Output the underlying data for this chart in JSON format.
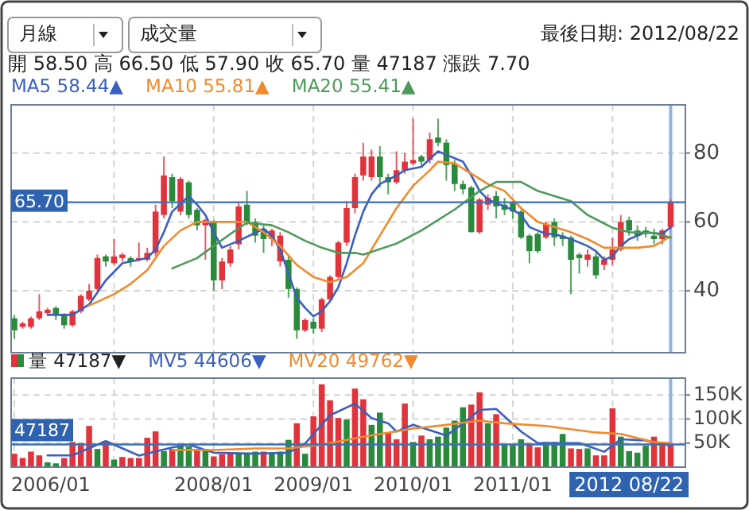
{
  "chart_data": [
    {
      "type": "candlestick",
      "annotations": [
        "月線",
        "成交量",
        "最後日期: 2012/08/22",
        "開 58.50 高 66.50 低 57.90 收 65.70 量 47187 漲跌 7.70"
      ],
      "x": [
        "2006-01",
        "2006-02",
        "2006-03",
        "2006-04",
        "2006-05",
        "2006-06",
        "2006-07",
        "2006-08",
        "2006-09",
        "2006-10",
        "2006-11",
        "2006-12",
        "2007-01",
        "2007-02",
        "2007-03",
        "2007-04",
        "2007-05",
        "2007-06",
        "2007-07",
        "2007-08",
        "2007-09",
        "2007-10",
        "2007-11",
        "2007-12",
        "2008-01",
        "2008-02",
        "2008-03",
        "2008-04",
        "2008-05",
        "2008-06",
        "2008-07",
        "2008-08",
        "2008-09",
        "2008-10",
        "2008-11",
        "2008-12",
        "2009-01",
        "2009-02",
        "2009-03",
        "2009-04",
        "2009-05",
        "2009-06",
        "2009-07",
        "2009-08",
        "2009-09",
        "2009-10",
        "2009-11",
        "2009-12",
        "2010-01",
        "2010-02",
        "2010-03",
        "2010-04",
        "2010-05",
        "2010-06",
        "2010-07",
        "2010-08",
        "2010-09",
        "2010-10",
        "2010-11",
        "2010-12",
        "2011-01",
        "2011-02",
        "2011-03",
        "2011-04",
        "2011-05",
        "2011-06",
        "2011-07",
        "2011-08",
        "2011-09",
        "2011-10",
        "2011-11",
        "2011-12",
        "2012-01",
        "2012-02",
        "2012-03",
        "2012-04",
        "2012-05",
        "2012-06",
        "2012-07",
        "2012-08"
      ],
      "ohlc": [
        [
          32,
          33,
          26,
          28.5
        ],
        [
          29.5,
          31,
          29,
          30.5
        ],
        [
          29.5,
          32.5,
          29,
          32
        ],
        [
          32,
          39,
          31.5,
          34
        ],
        [
          33.5,
          35,
          33,
          34.5
        ],
        [
          35,
          35.5,
          31.5,
          33
        ],
        [
          33,
          33.5,
          29,
          30
        ],
        [
          30,
          34.5,
          29.5,
          34
        ],
        [
          34,
          39,
          33.5,
          38.5
        ],
        [
          37.5,
          42,
          37,
          40
        ],
        [
          40.5,
          50.5,
          40,
          49.5
        ],
        [
          50,
          50.5,
          47,
          48.5
        ],
        [
          48,
          55,
          47.5,
          50
        ],
        [
          49.5,
          51,
          48.5,
          50.5
        ],
        [
          49.5,
          50,
          47,
          48.5
        ],
        [
          49,
          54,
          48.5,
          49.5
        ],
        [
          49,
          52.5,
          48.5,
          51
        ],
        [
          51,
          65,
          50,
          63
        ],
        [
          62,
          79,
          61,
          73.5
        ],
        [
          73,
          74,
          64,
          66
        ],
        [
          63,
          73,
          62,
          72.5
        ],
        [
          71.5,
          72,
          61,
          62
        ],
        [
          63.5,
          64,
          57.5,
          59
        ],
        [
          59,
          61,
          49,
          60.5
        ],
        [
          60,
          60.5,
          40,
          43
        ],
        [
          43,
          49.5,
          40.5,
          48.5
        ],
        [
          48,
          53,
          47,
          52
        ],
        [
          53.5,
          65.5,
          52,
          64.5
        ],
        [
          65,
          69,
          59,
          60
        ],
        [
          60,
          61,
          54,
          56
        ],
        [
          58,
          59,
          51,
          55
        ],
        [
          55,
          58,
          53,
          57.5
        ],
        [
          48.5,
          57,
          47,
          56
        ],
        [
          49,
          50,
          38,
          40.5
        ],
        [
          40.5,
          41,
          26,
          28.5
        ],
        [
          28.5,
          32,
          28,
          31.5
        ],
        [
          31,
          32,
          27.5,
          29
        ],
        [
          29,
          38,
          28,
          37.5
        ],
        [
          37.5,
          44.5,
          37,
          44
        ],
        [
          44,
          54.5,
          43.5,
          54
        ],
        [
          54,
          66,
          53,
          64
        ],
        [
          64,
          74,
          62.5,
          73
        ],
        [
          73.5,
          83,
          72,
          79
        ],
        [
          73,
          81,
          72,
          79
        ],
        [
          79,
          82,
          70,
          73
        ],
        [
          73,
          74,
          68,
          71.5
        ],
        [
          71.5,
          80.5,
          71,
          75
        ],
        [
          75,
          80,
          74,
          77.5
        ],
        [
          77,
          90,
          76.5,
          78
        ],
        [
          79,
          79.5,
          76,
          77.5
        ],
        [
          78,
          86,
          77,
          84
        ],
        [
          84.5,
          90,
          82,
          83
        ],
        [
          83,
          84,
          72,
          76.5
        ],
        [
          77,
          78,
          69,
          71
        ],
        [
          71,
          72,
          68,
          69.5
        ],
        [
          70,
          70.5,
          57,
          57
        ],
        [
          57,
          67,
          56.5,
          66.5
        ],
        [
          65,
          68,
          63.5,
          67
        ],
        [
          67.5,
          69,
          61,
          64.5
        ],
        [
          65,
          67,
          62,
          63.5
        ],
        [
          65.5,
          66,
          61,
          63
        ],
        [
          63,
          63.5,
          55,
          55.5
        ],
        [
          56,
          56.5,
          48,
          51.5
        ],
        [
          56.5,
          57,
          51,
          51.5
        ],
        [
          55.5,
          60,
          55,
          59.5
        ],
        [
          60,
          61,
          53,
          55.5
        ],
        [
          56,
          57,
          53,
          55
        ],
        [
          55.5,
          56,
          39,
          49
        ],
        [
          50.5,
          51,
          45,
          49.5
        ],
        [
          49,
          52,
          47,
          50.5
        ],
        [
          50,
          51,
          43.5,
          44.5
        ],
        [
          47.5,
          50,
          46,
          49
        ],
        [
          49,
          55.5,
          47.5,
          52
        ],
        [
          52,
          62,
          51.5,
          60
        ],
        [
          60.5,
          61.5,
          56,
          57.5
        ],
        [
          57.5,
          59,
          54.5,
          56
        ],
        [
          57.5,
          58.5,
          55.5,
          56.5
        ],
        [
          56,
          58,
          53.5,
          55
        ],
        [
          55,
          58,
          53.5,
          57.5
        ],
        [
          58.5,
          66.5,
          57.9,
          65.7
        ]
      ],
      "colors": [
        "#2a8a3b",
        "#e0333c",
        "#e0333c",
        "#e0333c",
        "#e0333c",
        "#2a8a3b",
        "#2a8a3b",
        "#e0333c",
        "#e0333c",
        "#e0333c",
        "#e0333c",
        "#2a8a3b",
        "#e0333c",
        "#e0333c",
        "#2a8a3b",
        "#e0333c",
        "#e0333c",
        "#e0333c",
        "#e0333c",
        "#2a8a3b",
        "#e0333c",
        "#2a8a3b",
        "#2a8a3b",
        "#e0333c",
        "#2a8a3b",
        "#e0333c",
        "#e0333c",
        "#e0333c",
        "#2a8a3b",
        "#2a8a3b",
        "#2a8a3b",
        "#e0333c",
        "#e0333c",
        "#2a8a3b",
        "#2a8a3b",
        "#e0333c",
        "#2a8a3b",
        "#e0333c",
        "#e0333c",
        "#e0333c",
        "#e0333c",
        "#e0333c",
        "#e0333c",
        "#e0333c",
        "#2a8a3b",
        "#2a8a3b",
        "#e0333c",
        "#e0333c",
        "#e0333c",
        "#2a8a3b",
        "#e0333c",
        "#2a8a3b",
        "#2a8a3b",
        "#2a8a3b",
        "#2a8a3b",
        "#2a8a3b",
        "#e0333c",
        "#e0333c",
        "#2a8a3b",
        "#2a8a3b",
        "#2a8a3b",
        "#2a8a3b",
        "#2a8a3b",
        "#2a8a3b",
        "#e0333c",
        "#2a8a3b",
        "#2a8a3b",
        "#2a8a3b",
        "#2a8a3b",
        "#e0333c",
        "#2a8a3b",
        "#e0333c",
        "#e0333c",
        "#e0333c",
        "#2a8a3b",
        "#2a8a3b",
        "#2a8a3b",
        "#2a8a3b",
        "#e0333c",
        "#e0333c"
      ],
      "series": [
        {
          "type": "line",
          "name": "MA5 58.44▲",
          "color": "#3a5fc0",
          "x": [
            "2006-05",
            "2006-08",
            "2006-10",
            "2006-12",
            "2007-02",
            "2007-04",
            "2007-05",
            "2007-06",
            "2007-07",
            "2007-08",
            "2007-10",
            "2007-11",
            "2007-12",
            "2008-01",
            "2008-02",
            "2008-04",
            "2008-07",
            "2008-08",
            "2008-09",
            "2008-10",
            "2008-11",
            "2008-12",
            "2009-01",
            "2009-02",
            "2009-03",
            "2009-04",
            "2009-05",
            "2009-06",
            "2009-07",
            "2009-08",
            "2009-09",
            "2009-11",
            "2009-12",
            "2010-02",
            "2010-04",
            "2010-05",
            "2010-07",
            "2010-08",
            "2010-09",
            "2010-10",
            "2010-12",
            "2011-01",
            "2011-02",
            "2011-03",
            "2011-05",
            "2011-06",
            "2011-08",
            "2011-10",
            "2011-11",
            "2011-12",
            "2012-01",
            "2012-02",
            "2012-03",
            "2012-05",
            "2012-07",
            "2012-08"
          ],
          "values": [
            33,
            33,
            36,
            43,
            48,
            49,
            49.5,
            52,
            57,
            63,
            67.5,
            65,
            62,
            57,
            52.5,
            54.5,
            58,
            56,
            52,
            45,
            38,
            35,
            32.6,
            34,
            37,
            41,
            48,
            56,
            63,
            68,
            71,
            73.5,
            75,
            76,
            80.5,
            79.5,
            77.5,
            73.5,
            69,
            66.5,
            64.5,
            63.5,
            62,
            58.5,
            56.5,
            56.5,
            55,
            53,
            51.5,
            49,
            50,
            53,
            55,
            57,
            56.5,
            58.44
          ]
        },
        {
          "type": "line",
          "name": "MA10 55.81▲",
          "color": "#f08a2c",
          "x": [
            "2006-10",
            "2007-01",
            "2007-03",
            "2007-05",
            "2007-07",
            "2007-09",
            "2007-11",
            "2008-03",
            "2008-05",
            "2008-07",
            "2008-09",
            "2008-11",
            "2009-01",
            "2009-03",
            "2009-05",
            "2009-07",
            "2009-09",
            "2009-11",
            "2010-01",
            "2010-03",
            "2010-04",
            "2010-06",
            "2010-08",
            "2010-10",
            "2010-12",
            "2011-02",
            "2011-04",
            "2011-06",
            "2011-08",
            "2011-10",
            "2011-12",
            "2012-02",
            "2012-04",
            "2012-06",
            "2012-08"
          ],
          "values": [
            35.7,
            39,
            42,
            46,
            53,
            57.5,
            60,
            60,
            60,
            57,
            53,
            47.5,
            44,
            42.5,
            44,
            48,
            56,
            64,
            70.5,
            75,
            77.5,
            77,
            74,
            71,
            69,
            64,
            60,
            58.5,
            57,
            55,
            52.5,
            52.5,
            52.5,
            53,
            55.81
          ]
        },
        {
          "type": "line",
          "name": "MA20 55.41▲",
          "color": "#4c9a5a",
          "x": [
            "2007-08",
            "2007-11",
            "2008-01",
            "2008-03",
            "2008-05",
            "2008-08",
            "2008-10",
            "2008-12",
            "2009-02",
            "2009-04",
            "2009-06",
            "2009-07",
            "2009-11",
            "2010-02",
            "2010-06",
            "2010-09",
            "2010-11",
            "2011-02",
            "2011-04",
            "2011-08",
            "2011-10",
            "2012-01",
            "2012-03",
            "2012-06",
            "2012-08"
          ],
          "values": [
            46.5,
            49.5,
            53,
            56.5,
            59.8,
            59,
            57,
            54.5,
            52.5,
            51,
            51,
            50.5,
            53.7,
            57.5,
            63.6,
            69,
            71.6,
            71.6,
            69,
            66,
            62,
            58.3,
            57,
            56.8,
            55.41
          ]
        }
      ],
      "xlim": [
        "2005-12-20",
        "2012-09-25"
      ],
      "xticks": [
        {
          "value": "2007-01",
          "label": null
        },
        {
          "value": "2008-01",
          "label": null
        },
        {
          "value": "2009-01",
          "label": null
        },
        {
          "value": "2010-01",
          "label": null
        },
        {
          "value": "2011-01",
          "label": null
        },
        {
          "value": "2012-01",
          "label": null
        }
      ],
      "ylim": [
        22,
        94
      ],
      "yticks": [
        40,
        60,
        80
      ],
      "tick_labels": "y",
      "grid": true,
      "legend": "top left",
      "ref_lines": [
        {
          "axis": "y",
          "value": 65.7,
          "label": "65.70",
          "color": "#3d6fb6"
        },
        {
          "axis": "x",
          "value": "2012-08",
          "color": "#8fb2e0"
        }
      ]
    },
    {
      "type": "bar",
      "x": [
        "2006-01",
        "2006-02",
        "2006-03",
        "2006-04",
        "2006-05",
        "2006-06",
        "2006-07",
        "2006-08",
        "2006-09",
        "2006-10",
        "2006-11",
        "2006-12",
        "2007-01",
        "2007-02",
        "2007-03",
        "2007-04",
        "2007-05",
        "2007-06",
        "2007-07",
        "2007-08",
        "2007-09",
        "2007-10",
        "2007-11",
        "2007-12",
        "2008-01",
        "2008-02",
        "2008-03",
        "2008-04",
        "2008-05",
        "2008-06",
        "2008-07",
        "2008-08",
        "2008-09",
        "2008-10",
        "2008-11",
        "2008-12",
        "2009-01",
        "2009-02",
        "2009-03",
        "2009-04",
        "2009-05",
        "2009-06",
        "2009-07",
        "2009-08",
        "2009-09",
        "2009-10",
        "2009-11",
        "2009-12",
        "2010-01",
        "2010-02",
        "2010-03",
        "2010-04",
        "2010-05",
        "2010-06",
        "2010-07",
        "2010-08",
        "2010-09",
        "2010-10",
        "2010-11",
        "2010-12",
        "2011-01",
        "2011-02",
        "2011-03",
        "2011-04",
        "2011-05",
        "2011-06",
        "2011-07",
        "2011-08",
        "2011-09",
        "2011-10",
        "2011-11",
        "2011-12",
        "2012-01",
        "2012-02",
        "2012-03",
        "2012-04",
        "2012-05",
        "2012-06",
        "2012-07",
        "2012-08"
      ],
      "series": [
        {
          "type": "bar",
          "name": "量 47187▼",
          "colors": [
            "#e0333c",
            "#e0333c",
            "#e0333c",
            "#e0333c",
            "#2a8a3b",
            "#2a8a3b",
            "#e0333c",
            "#e0333c",
            "#e0333c",
            "#e0333c",
            "#2a8a3b",
            "#e0333c",
            "#2a8a3b",
            "#e0333c",
            "#e0333c",
            "#e0333c",
            "#e0333c",
            "#e0333c",
            "#2a8a3b",
            "#e0333c",
            "#2a8a3b",
            "#2a8a3b",
            "#e0333c",
            "#2a8a3b",
            "#e0333c",
            "#e0333c",
            "#e0333c",
            "#2a8a3b",
            "#2a8a3b",
            "#2a8a3b",
            "#e0333c",
            "#2a8a3b",
            "#2a8a3b",
            "#2a8a3b",
            "#e0333c",
            "#2a8a3b",
            "#e0333c",
            "#e0333c",
            "#e0333c",
            "#e0333c",
            "#2a8a3b",
            "#e0333c",
            "#e0333c",
            "#2a8a3b",
            "#2a8a3b",
            "#e0333c",
            "#e0333c",
            "#e0333c",
            "#2a8a3b",
            "#e0333c",
            "#2a8a3b",
            "#2a8a3b",
            "#2a8a3b",
            "#2a8a3b",
            "#2a8a3b",
            "#e0333c",
            "#e0333c",
            "#2a8a3b",
            "#e0333c",
            "#2a8a3b",
            "#2a8a3b",
            "#2a8a3b",
            "#e0333c",
            "#e0333c",
            "#2a8a3b",
            "#2a8a3b",
            "#2a8a3b",
            "#e0333c",
            "#e0333c",
            "#2a8a3b",
            "#e0333c",
            "#e0333c",
            "#e0333c",
            "#2a8a3b",
            "#2a8a3b",
            "#2a8a3b",
            "#2a8a3b",
            "#e0333c",
            "#e0333c",
            "#e0333c"
          ],
          "values": [
            27800,
            18900,
            32200,
            24400,
            10000,
            7800,
            18900,
            52200,
            50000,
            85500,
            37800,
            54400,
            15600,
            21100,
            18900,
            18900,
            61100,
            74400,
            33300,
            37800,
            44400,
            43300,
            37800,
            37800,
            22200,
            26700,
            28900,
            30000,
            30000,
            32200,
            32200,
            30000,
            32200,
            56700,
            91100,
            27800,
            105500,
            172200,
            138900,
            102200,
            98900,
            163300,
            141100,
            87800,
            113300,
            71100,
            57800,
            132200,
            52200,
            65500,
            57800,
            63300,
            82200,
            96700,
            124400,
            130000,
            155500,
            91100,
            110000,
            46700,
            46700,
            57800,
            50000,
            41100,
            52200,
            52200,
            68900,
            38900,
            37800,
            38900,
            24400,
            24400,
            122200,
            63300,
            33300,
            30000,
            44400,
            63300,
            46700,
            47187
          ]
        },
        {
          "type": "line",
          "name": "MV5 44606▼",
          "color": "#3a5fc0",
          "x": [
            "2006-05",
            "2006-08",
            "2006-12",
            "2007-04",
            "2007-08",
            "2007-10",
            "2008-01",
            "2008-06",
            "2008-10",
            "2008-12",
            "2009-03",
            "2009-06",
            "2009-08",
            "2009-10",
            "2009-11",
            "2010-01",
            "2010-05",
            "2010-07",
            "2010-09",
            "2010-11",
            "2011-02",
            "2011-04",
            "2011-07",
            "2011-09",
            "2011-12",
            "2012-02",
            "2012-05",
            "2012-08"
          ],
          "values": [
            24400,
            24400,
            54000,
            24000,
            41000,
            46700,
            30000,
            27800,
            30000,
            48900,
            107800,
            132000,
            102000,
            91000,
            74000,
            88000,
            65500,
            91000,
            118900,
            121000,
            74000,
            50000,
            50000,
            50000,
            32000,
            57800,
            55500,
            44606
          ]
        },
        {
          "type": "line",
          "name": "MV20 49762▼",
          "color": "#f08a2c",
          "x": [
            "2007-08",
            "2008-01",
            "2008-06",
            "2008-10",
            "2009-02",
            "2009-07",
            "2010-01",
            "2010-05",
            "2010-09",
            "2010-12",
            "2011-05",
            "2011-11",
            "2012-02",
            "2012-06",
            "2012-08"
          ],
          "values": [
            35500,
            35500,
            38900,
            38900,
            46700,
            63300,
            80000,
            87800,
            96700,
            91000,
            85500,
            72000,
            68900,
            52000,
            49762
          ]
        }
      ],
      "xlim": [
        "2005-12-20",
        "2012-09-25"
      ],
      "xticks": [
        {
          "value": "2006-01",
          "label": "2006/01"
        },
        {
          "value": "2007-01",
          "label": null
        },
        {
          "value": "2008-01",
          "label": "2008/01"
        },
        {
          "value": "2009-01",
          "label": "2009/01"
        },
        {
          "value": "2010-01",
          "label": "2010/01"
        },
        {
          "value": "2011-01",
          "label": "2011/01"
        },
        {
          "value": "2012-01",
          "label": null
        }
      ],
      "ylim": [
        0,
        185000
      ],
      "yticks": [
        {
          "value": 50000,
          "label": "50K"
        },
        {
          "value": 100000,
          "label": "100K"
        },
        {
          "value": 150000,
          "label": "150K"
        }
      ],
      "grid": true,
      "legend": "top left",
      "ref_lines": [
        {
          "axis": "y",
          "value": 47187,
          "label": "47187",
          "color": "#3d6fb6"
        },
        {
          "axis": "x",
          "value": "2012-08",
          "label": "2012 08/22",
          "color": "#8fb2e0"
        }
      ]
    }
  ]
}
